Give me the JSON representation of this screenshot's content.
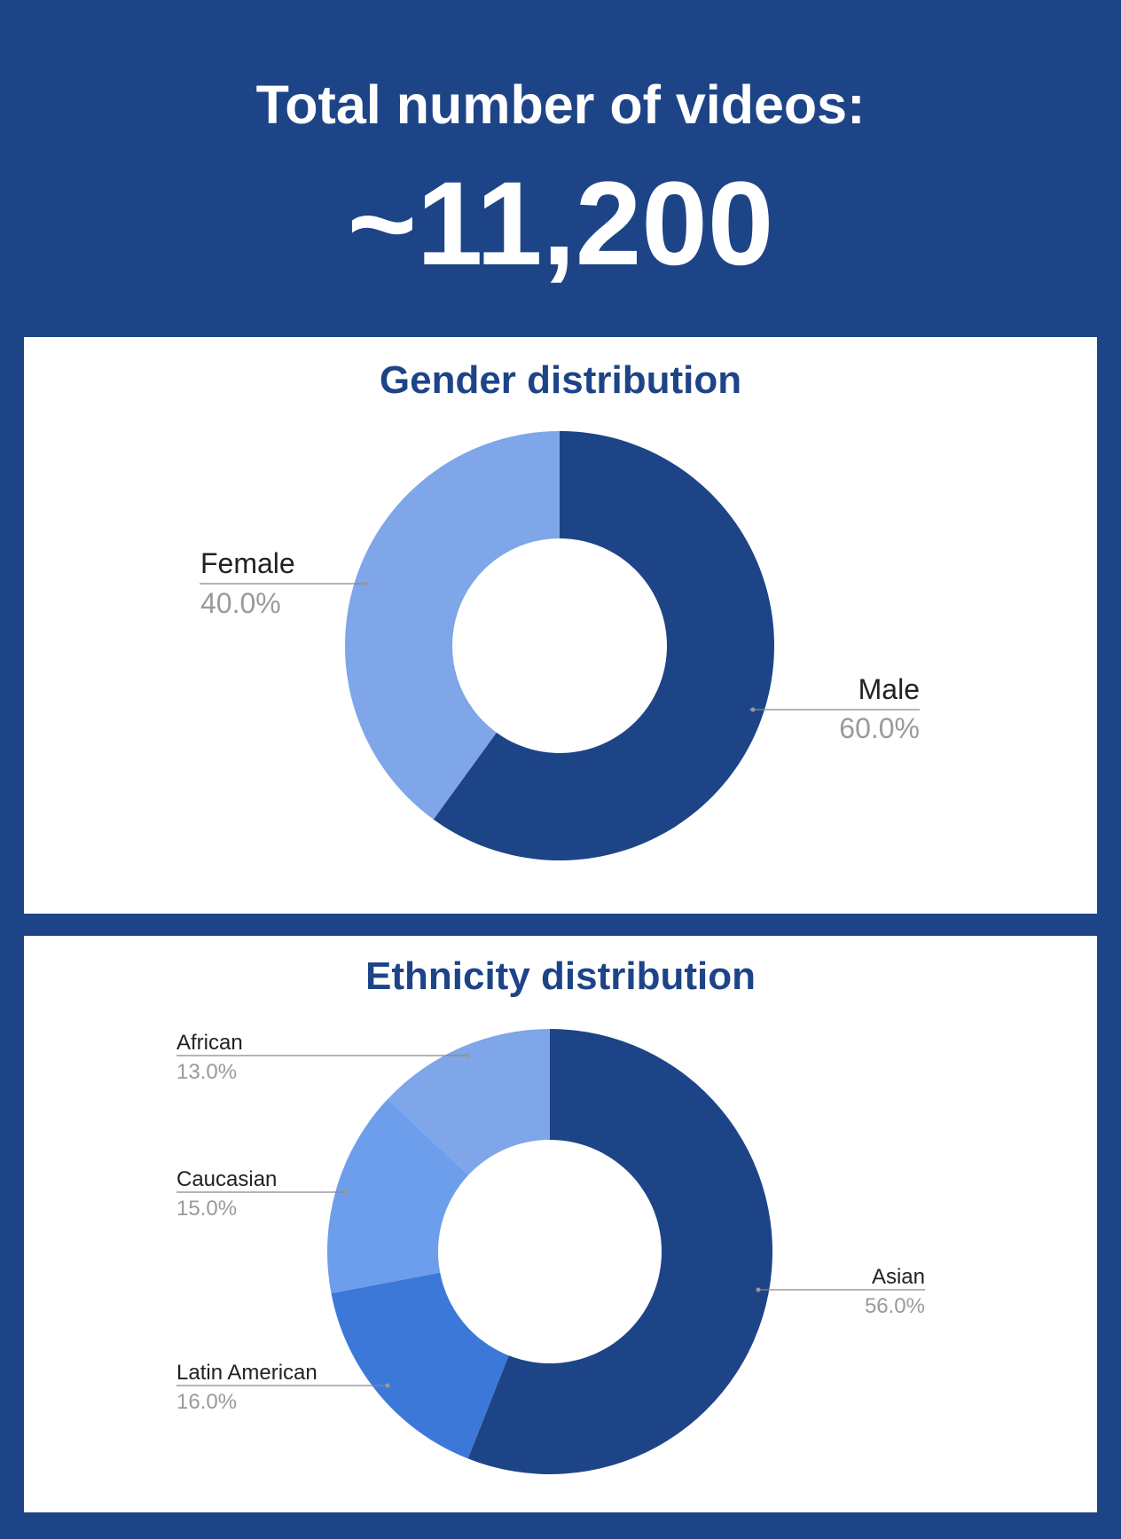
{
  "header": {
    "title": "Total number of videos:",
    "value": "~11,200"
  },
  "chart_data": [
    {
      "type": "pie",
      "title": "Gender distribution",
      "donut": true,
      "slices": [
        {
          "label": "Male",
          "value": 60.0,
          "value_label": "60.0%",
          "color": "#1e4488"
        },
        {
          "label": "Female",
          "value": 40.0,
          "value_label": "40.0%",
          "color": "#7ea6e8"
        }
      ]
    },
    {
      "type": "pie",
      "title": "Ethnicity distribution",
      "donut": true,
      "slices": [
        {
          "label": "Asian",
          "value": 56.0,
          "value_label": "56.0%",
          "color": "#1e4488"
        },
        {
          "label": "Latin American",
          "value": 16.0,
          "value_label": "16.0%",
          "color": "#3c78d8"
        },
        {
          "label": "Caucasian",
          "value": 15.0,
          "value_label": "15.0%",
          "color": "#6d9eeb"
        },
        {
          "label": "African",
          "value": 13.0,
          "value_label": "13.0%",
          "color": "#7ea6e8"
        }
      ]
    }
  ]
}
